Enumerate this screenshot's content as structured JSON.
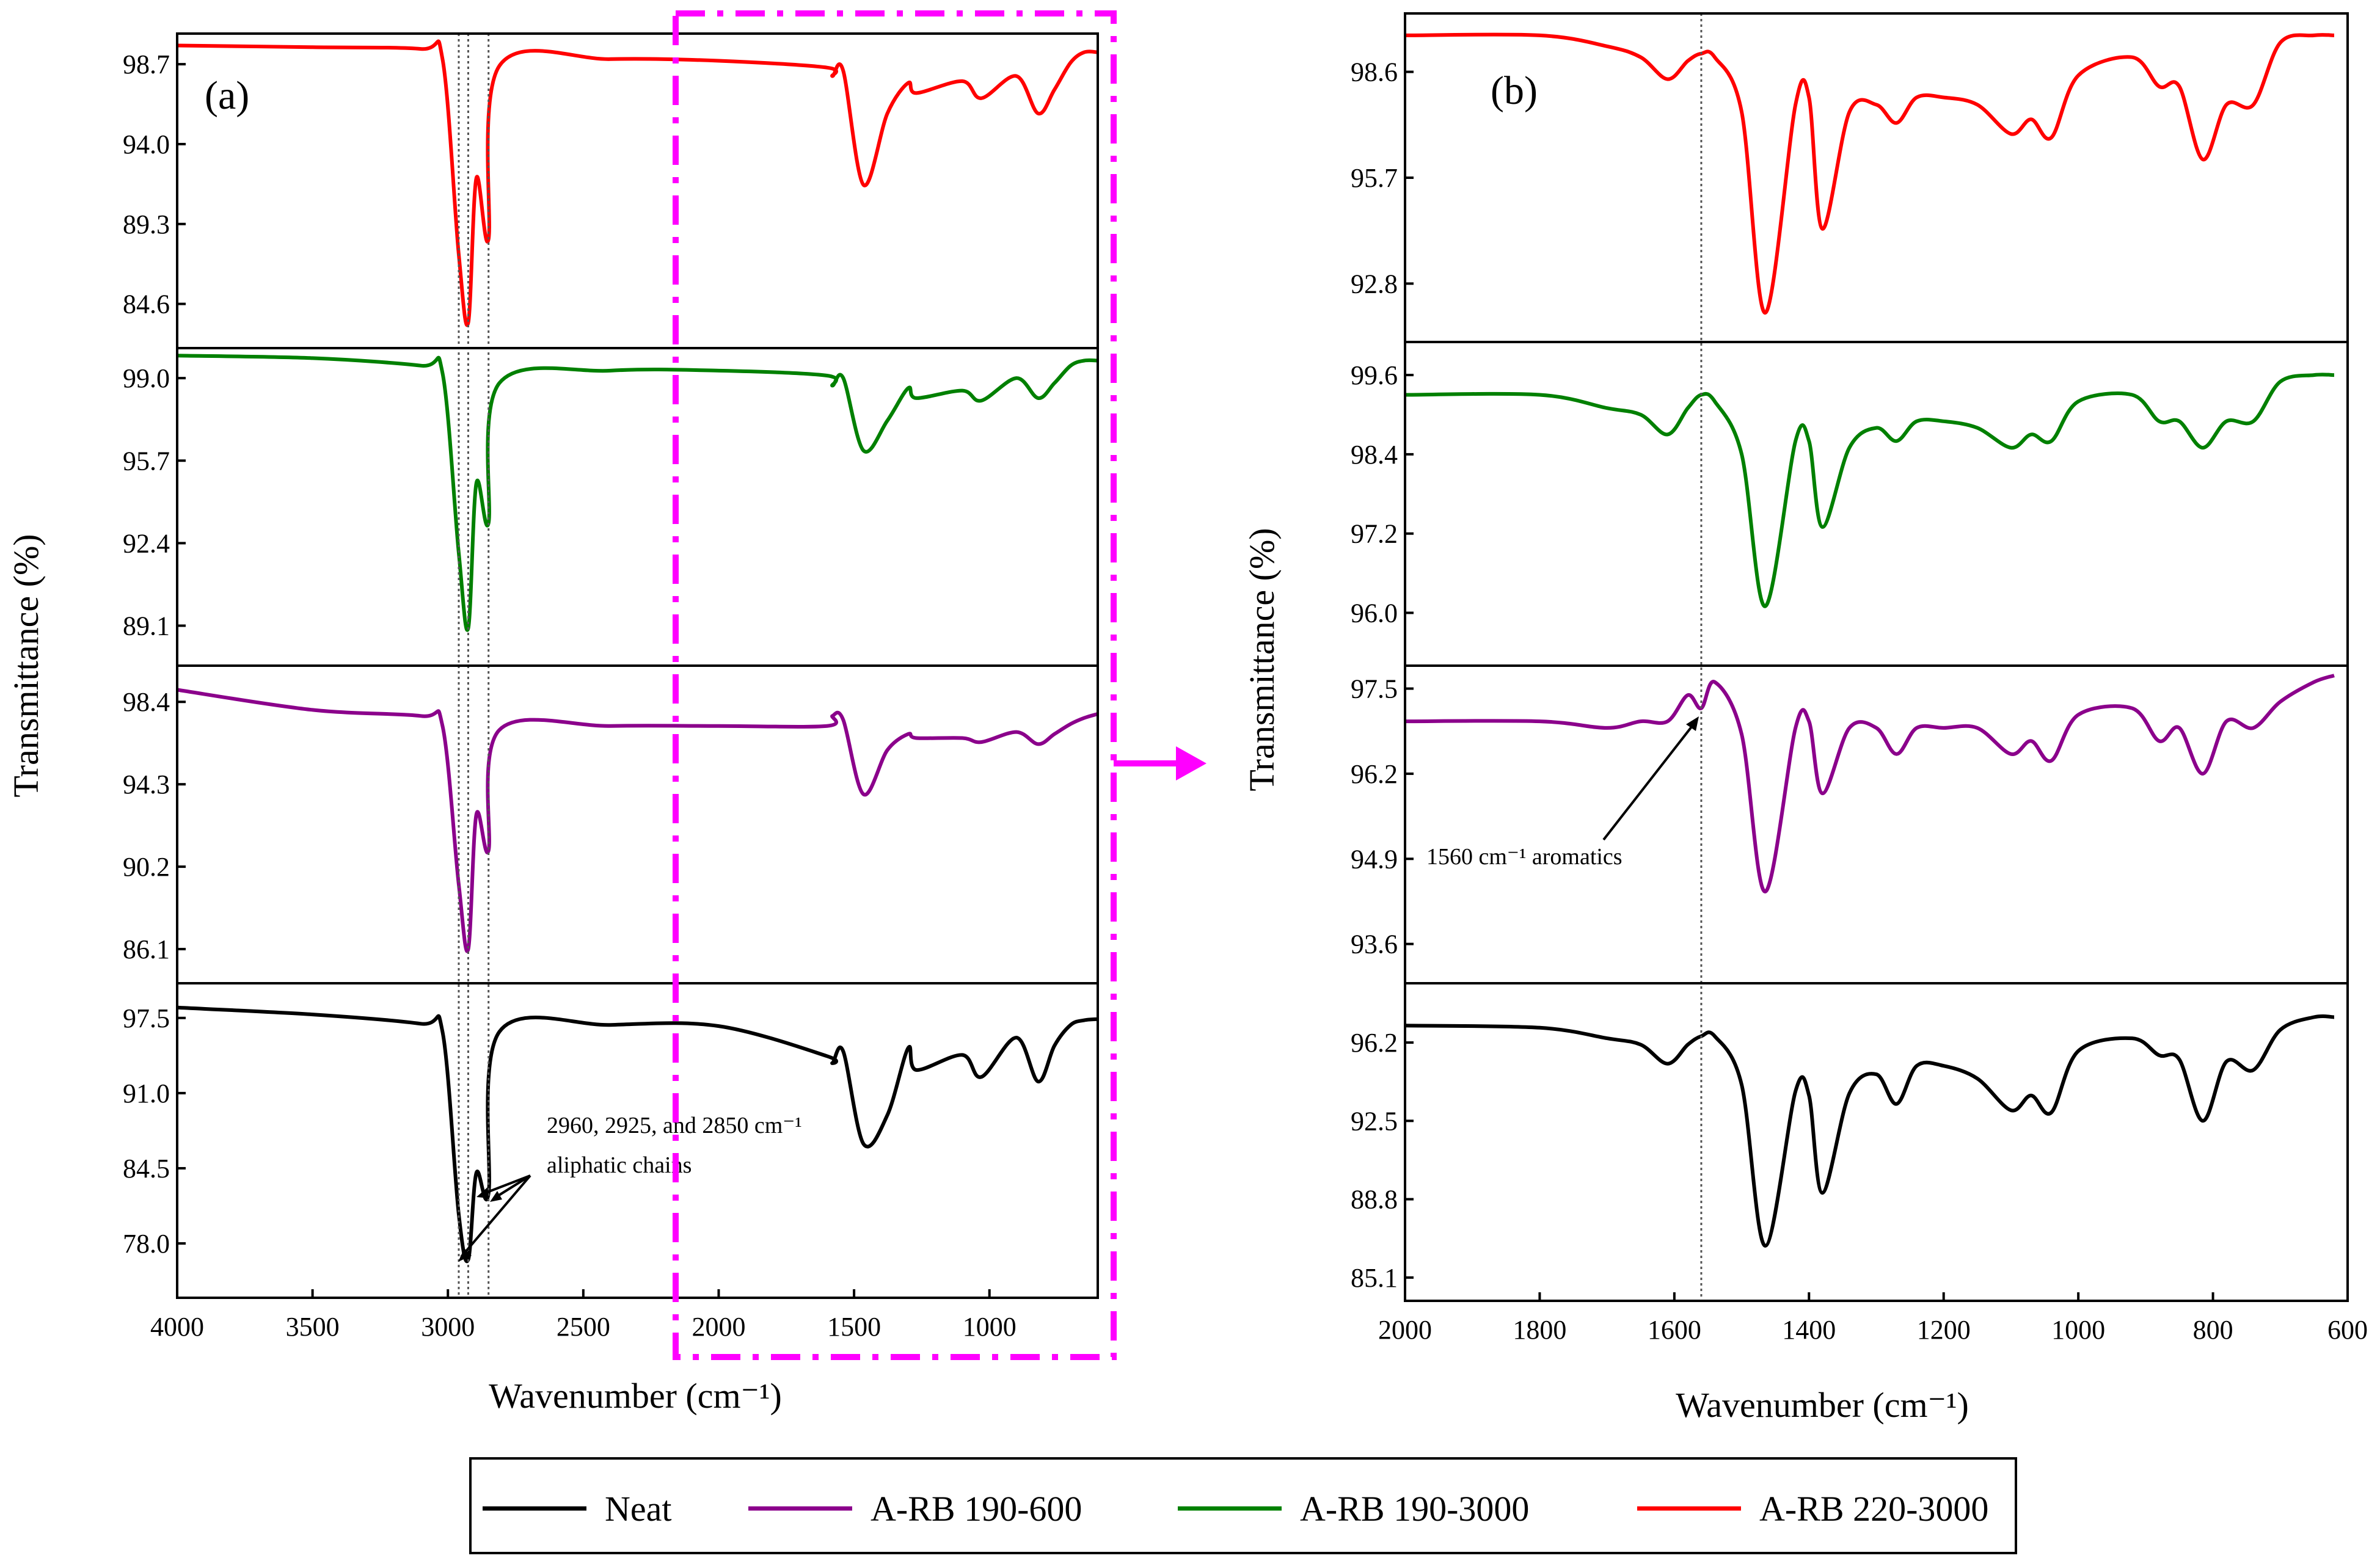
{
  "chart_data": [
    {
      "type": "line",
      "panel_label": "(a)",
      "xlabel": "Wavenumber (cm⁻¹)",
      "ylabel": "Transmittance (%)",
      "xlim": [
        4000,
        600
      ],
      "x_ticks": [
        4000,
        3500,
        3000,
        2500,
        2000,
        1500,
        1000
      ],
      "x_tick_labels": [
        "4000",
        "3500",
        "3000",
        "2500",
        "2000",
        "1500",
        "1000"
      ],
      "guide_lines": [
        2960,
        2925,
        2850
      ],
      "subplots": [
        {
          "series": "A-RB 220-3000",
          "ylim": [
            82,
            100.5
          ],
          "y_ticks": [
            "98.7",
            "94.0",
            "89.3",
            "84.6"
          ],
          "baseline": 99.0,
          "start_value": 99.8,
          "x": [
            4000,
            3500,
            3100,
            3020,
            2960,
            2925,
            2895,
            2850,
            2810,
            2400,
            2000,
            1600,
            1580,
            1540,
            1465,
            1377,
            1300,
            1270,
            1100,
            1030,
            900,
            820,
            760,
            700,
            650,
            600
          ],
          "values": [
            99.8,
            99.7,
            99.6,
            99.0,
            87.5,
            83.5,
            92.0,
            88.4,
            98.6,
            99.0,
            98.9,
            98.5,
            98.0,
            98.3,
            91.6,
            95.8,
            97.6,
            97.0,
            97.7,
            96.7,
            98.0,
            95.8,
            97.2,
            98.8,
            99.4,
            99.4
          ]
        },
        {
          "series": "A-RB 190-3000",
          "ylim": [
            87.5,
            100.2
          ],
          "y_ticks": [
            "99.0",
            "95.7",
            "92.4",
            "89.1"
          ],
          "baseline": 99.3,
          "start_value": 99.9,
          "x": [
            4000,
            3500,
            3100,
            3020,
            2960,
            2925,
            2895,
            2850,
            2810,
            2400,
            2000,
            1600,
            1580,
            1540,
            1465,
            1377,
            1300,
            1270,
            1100,
            1030,
            900,
            820,
            760,
            700,
            650,
            600
          ],
          "values": [
            99.9,
            99.8,
            99.5,
            99.2,
            92.0,
            89.0,
            94.8,
            93.2,
            98.8,
            99.3,
            99.3,
            99.1,
            98.7,
            99.0,
            96.1,
            97.3,
            98.6,
            98.2,
            98.5,
            98.1,
            99.0,
            98.2,
            98.8,
            99.5,
            99.7,
            99.7
          ]
        },
        {
          "series": "A-RB 190-600",
          "ylim": [
            84.4,
            100.2
          ],
          "y_ticks": [
            "98.4",
            "94.3",
            "90.2",
            "86.1"
          ],
          "baseline": 97.2,
          "start_value": 99.0,
          "x": [
            4000,
            3500,
            3100,
            3020,
            2960,
            2925,
            2895,
            2850,
            2810,
            2400,
            2000,
            1600,
            1580,
            1540,
            1465,
            1377,
            1300,
            1270,
            1100,
            1030,
            900,
            820,
            760,
            700,
            650,
            600
          ],
          "values": [
            99.0,
            98.0,
            97.7,
            97.2,
            89.3,
            86.1,
            92.8,
            91.0,
            97.0,
            97.2,
            97.2,
            97.2,
            97.7,
            97.5,
            93.8,
            96.0,
            96.8,
            96.6,
            96.6,
            96.4,
            96.9,
            96.3,
            96.8,
            97.3,
            97.6,
            97.8
          ]
        },
        {
          "series": "Neat",
          "ylim": [
            73.3,
            100.5
          ],
          "y_ticks": [
            "97.5",
            "91.0",
            "84.5",
            "78.0"
          ],
          "baseline": 96.9,
          "start_value": 98.4,
          "x": [
            4000,
            3500,
            3100,
            3020,
            2960,
            2925,
            2895,
            2850,
            2810,
            2400,
            2000,
            1600,
            1580,
            1540,
            1465,
            1377,
            1300,
            1270,
            1100,
            1030,
            900,
            820,
            760,
            700,
            650,
            600
          ],
          "values": [
            98.4,
            97.8,
            97.0,
            96.3,
            80.5,
            76.6,
            84.1,
            82.3,
            96.3,
            96.9,
            96.8,
            94.2,
            93.6,
            94.6,
            86.6,
            89.1,
            94.9,
            93.0,
            94.3,
            92.4,
            95.8,
            92.0,
            95.1,
            96.9,
            97.3,
            97.4
          ]
        }
      ],
      "annotations": [
        "2960, 2925, and 2850 cm⁻¹",
        "aliphatic chains"
      ]
    },
    {
      "type": "line",
      "panel_label": "(b)",
      "xlabel": "Wavenumber (cm⁻¹)",
      "ylabel": "Transmittance (%)",
      "xlim": [
        2000,
        600
      ],
      "x_ticks": [
        2000,
        1800,
        1600,
        1400,
        1200,
        1000,
        800,
        600
      ],
      "x_tick_labels": [
        "2000",
        "1800",
        "1600",
        "1400",
        "1200",
        "1000",
        "800",
        "600"
      ],
      "guide_lines": [
        1560
      ],
      "subplots": [
        {
          "series": "A-RB 220-3000",
          "ylim": [
            91.2,
            100.2
          ],
          "y_ticks": [
            "98.6",
            "95.7",
            "92.8"
          ],
          "x": [
            2000,
            1800,
            1700,
            1650,
            1610,
            1580,
            1560,
            1540,
            1500,
            1465,
            1420,
            1400,
            1380,
            1340,
            1300,
            1270,
            1240,
            1200,
            1150,
            1100,
            1070,
            1040,
            1000,
            920,
            880,
            850,
            815,
            780,
            740,
            700,
            650,
            620
          ],
          "values": [
            99.6,
            99.6,
            99.3,
            99.0,
            98.4,
            98.9,
            99.1,
            99.0,
            97.5,
            92.0,
            97.7,
            97.9,
            94.3,
            97.5,
            97.7,
            97.2,
            97.9,
            97.9,
            97.7,
            96.9,
            97.3,
            96.8,
            98.5,
            99.0,
            98.2,
            98.2,
            96.2,
            97.7,
            97.7,
            99.4,
            99.6,
            99.6
          ]
        },
        {
          "series": "A-RB 190-3000",
          "ylim": [
            95.2,
            100.1
          ],
          "y_ticks": [
            "99.6",
            "98.4",
            "97.2",
            "96.0"
          ],
          "x": [
            2000,
            1800,
            1700,
            1650,
            1610,
            1580,
            1560,
            1540,
            1500,
            1465,
            1420,
            1400,
            1380,
            1340,
            1300,
            1270,
            1240,
            1200,
            1150,
            1100,
            1070,
            1040,
            1000,
            920,
            880,
            850,
            815,
            780,
            740,
            700,
            650,
            620
          ],
          "values": [
            99.3,
            99.3,
            99.1,
            99.0,
            98.7,
            99.1,
            99.3,
            99.2,
            98.4,
            96.1,
            98.6,
            98.6,
            97.3,
            98.5,
            98.8,
            98.6,
            98.9,
            98.9,
            98.8,
            98.5,
            98.7,
            98.6,
            99.2,
            99.3,
            98.9,
            98.9,
            98.5,
            98.9,
            98.9,
            99.5,
            99.6,
            99.6
          ]
        },
        {
          "series": "A-RB 190-600",
          "ylim": [
            93.0,
            97.85
          ],
          "y_ticks": [
            "97.5",
            "96.2",
            "94.9",
            "93.6"
          ],
          "x": [
            2000,
            1800,
            1700,
            1650,
            1610,
            1580,
            1560,
            1540,
            1500,
            1465,
            1420,
            1400,
            1380,
            1340,
            1300,
            1270,
            1240,
            1200,
            1150,
            1100,
            1070,
            1040,
            1000,
            920,
            880,
            850,
            815,
            780,
            740,
            700,
            650,
            620
          ],
          "values": [
            97.0,
            97.0,
            96.9,
            97.0,
            97.0,
            97.4,
            97.2,
            97.6,
            96.8,
            94.4,
            96.9,
            97.0,
            95.9,
            96.9,
            96.9,
            96.5,
            96.9,
            96.9,
            96.9,
            96.5,
            96.7,
            96.4,
            97.1,
            97.2,
            96.7,
            96.9,
            96.2,
            97.0,
            96.9,
            97.3,
            97.6,
            97.7
          ]
        },
        {
          "series": "Neat",
          "ylim": [
            84.0,
            99.0
          ],
          "y_ticks": [
            "96.2",
            "92.5",
            "88.8",
            "85.1"
          ],
          "x": [
            2000,
            1800,
            1700,
            1650,
            1610,
            1580,
            1560,
            1540,
            1500,
            1465,
            1420,
            1400,
            1380,
            1340,
            1300,
            1270,
            1240,
            1200,
            1150,
            1100,
            1070,
            1040,
            1000,
            920,
            880,
            850,
            815,
            780,
            740,
            700,
            650,
            620
          ],
          "values": [
            97.0,
            96.9,
            96.4,
            96.1,
            95.2,
            96.1,
            96.5,
            96.5,
            94.2,
            86.6,
            93.9,
            93.7,
            89.1,
            93.8,
            94.7,
            93.3,
            95.1,
            95.1,
            94.5,
            93.0,
            93.7,
            92.9,
            95.8,
            96.4,
            95.6,
            95.4,
            92.5,
            95.3,
            94.9,
            96.8,
            97.4,
            97.4
          ]
        }
      ],
      "annotations": [
        "1560 cm⁻¹ aromatics"
      ]
    }
  ],
  "legend": {
    "position": "bottom",
    "items": [
      {
        "label": "Neat",
        "color": "#000000"
      },
      {
        "label": "A-RB 190-600",
        "color": "#8B008B"
      },
      {
        "label": "A-RB 190-3000",
        "color": "#008000"
      },
      {
        "label": "A-RB 220-3000",
        "color": "#FF0000"
      }
    ]
  },
  "series_colors": {
    "A-RB 220-3000": "#FF0000",
    "A-RB 190-3000": "#008000",
    "A-RB 190-600": "#8B008B",
    "Neat": "#000000"
  },
  "highlight_color": "#FF00FF"
}
